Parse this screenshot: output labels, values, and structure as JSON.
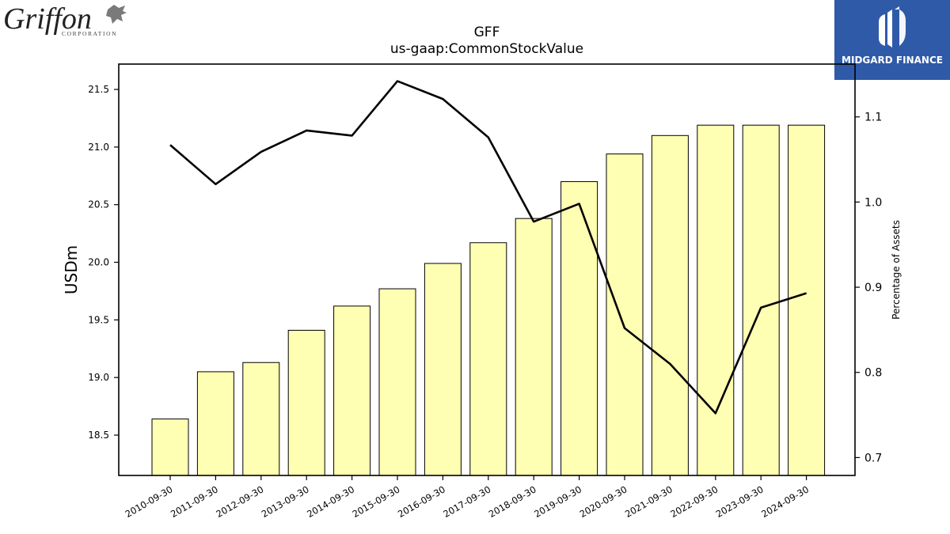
{
  "logos": {
    "left_brand": "Griffon",
    "left_sub": "CORPORATION",
    "right_brand": "MIDGARD FINANCE"
  },
  "colors": {
    "bar_fill": "#ffffb3",
    "bar_stroke": "#000000",
    "line": "#000000",
    "right_logo_bg": "#2f5aa8"
  },
  "chart_data": {
    "type": "bar",
    "title": "GFF",
    "subtitle": "us-gaap:CommonStockValue",
    "ylabel": "USDm",
    "y2label": "Percentage of Assets",
    "categories": [
      "2010-09-30",
      "2011-09-30",
      "2012-09-30",
      "2013-09-30",
      "2014-09-30",
      "2015-09-30",
      "2016-09-30",
      "2017-09-30",
      "2018-09-30",
      "2019-09-30",
      "2020-09-30",
      "2021-09-30",
      "2022-09-30",
      "2023-09-30",
      "2024-09-30"
    ],
    "series": [
      {
        "values": [
          18.64,
          19.05,
          19.13,
          19.41,
          19.62,
          19.77,
          19.99,
          20.17,
          20.38,
          20.7,
          20.94,
          21.1,
          21.19,
          21.19,
          21.19
        ]
      },
      {
        "axis": "right",
        "values": [
          1.067,
          1.021,
          1.059,
          1.084,
          1.078,
          1.142,
          1.121,
          1.076,
          0.977,
          0.998,
          0.852,
          0.81,
          0.752,
          0.876,
          0.893
        ]
      }
    ],
    "ylim": [
      18.15,
      21.72
    ],
    "y2lim": [
      0.679,
      1.162
    ],
    "yticks": [
      "18.5",
      "19.0",
      "19.5",
      "20.0",
      "20.5",
      "21.0",
      "21.5"
    ],
    "y2ticks": [
      "0.7",
      "0.8",
      "0.9",
      "1.0",
      "1.1"
    ],
    "grid": false,
    "legend": "none"
  }
}
